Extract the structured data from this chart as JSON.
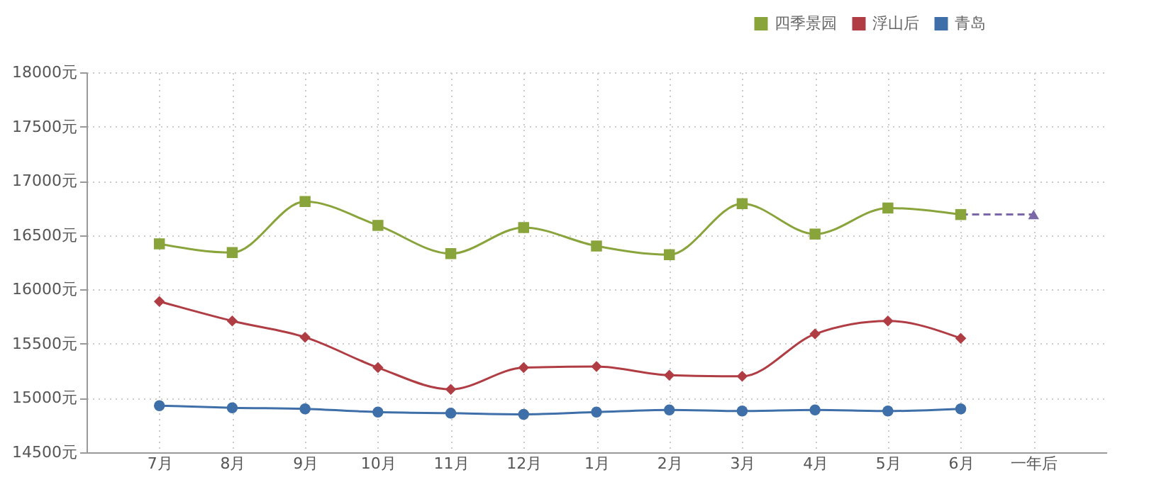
{
  "chart_data": {
    "type": "line",
    "categories": [
      "7月",
      "8月",
      "9月",
      "10月",
      "11月",
      "12月",
      "1月",
      "2月",
      "3月",
      "4月",
      "5月",
      "6月",
      "一年后"
    ],
    "series": [
      {
        "color": "#7b68a6",
        "marker": "triangle",
        "line_style": "dashed",
        "values": [
          null,
          null,
          null,
          null,
          null,
          null,
          null,
          null,
          null,
          null,
          null,
          16690,
          16690
        ]
      },
      {
        "name": "四季景园",
        "color": "#8aa43c",
        "marker": "square",
        "values": [
          16420,
          16340,
          16810,
          16590,
          16330,
          16570,
          16400,
          16320,
          16790,
          16510,
          16750,
          16690,
          null
        ]
      },
      {
        "name": "浮山后",
        "color": "#b13d44",
        "marker": "diamond",
        "values": [
          15890,
          15710,
          15560,
          15280,
          15080,
          15280,
          15290,
          15210,
          15200,
          15590,
          15710,
          15550,
          null
        ]
      },
      {
        "name": "青岛",
        "color": "#3e6fa8",
        "marker": "circle",
        "values": [
          14930,
          14910,
          14900,
          14870,
          14860,
          14850,
          14870,
          14890,
          14880,
          14890,
          14880,
          14900,
          null
        ]
      }
    ],
    "ylim": [
      14500,
      18000
    ],
    "yticks": [
      {
        "value": 14500,
        "label": "14500元"
      },
      {
        "value": 15000,
        "label": "15000元"
      },
      {
        "value": 15500,
        "label": "15500元"
      },
      {
        "value": 16000,
        "label": "16000元"
      },
      {
        "value": 16500,
        "label": "16500元"
      },
      {
        "value": 17000,
        "label": "17000元"
      },
      {
        "value": 17500,
        "label": "17500元"
      },
      {
        "value": 18000,
        "label": "18000元"
      }
    ],
    "grid": true,
    "legend": "top right",
    "line_style": "solid"
  }
}
